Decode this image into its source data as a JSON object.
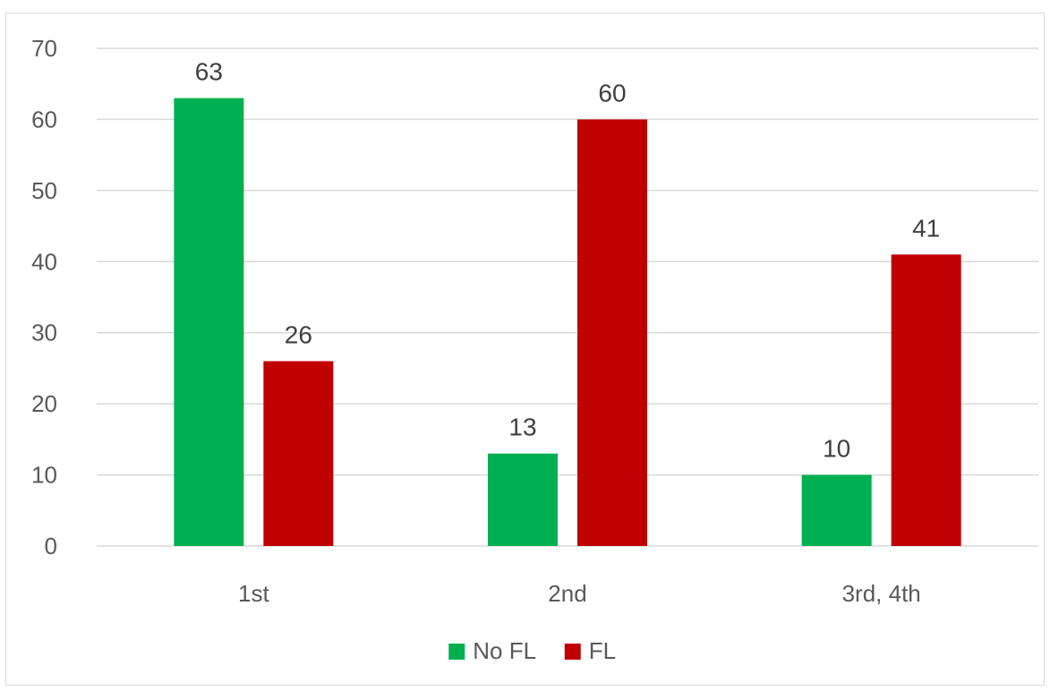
{
  "chart_data": {
    "type": "bar",
    "categories": [
      "1st",
      "2nd",
      "3rd, 4th"
    ],
    "series": [
      {
        "name": "No FL",
        "values": [
          63,
          13,
          10
        ],
        "color": "#00b050"
      },
      {
        "name": "FL",
        "values": [
          26,
          60,
          41
        ],
        "color": "#c00000"
      }
    ],
    "ylim": [
      0,
      70
    ],
    "yticks": [
      0,
      10,
      20,
      30,
      40,
      50,
      60,
      70
    ],
    "grid": true,
    "legend_position": "bottom",
    "data_labels": true
  }
}
